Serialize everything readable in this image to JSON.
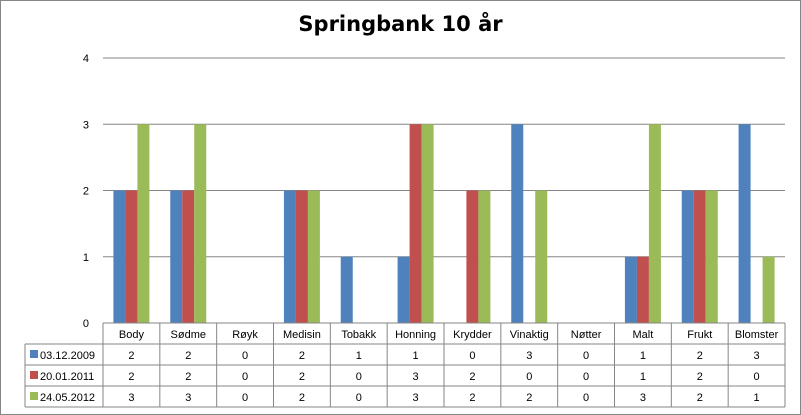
{
  "chart_data": {
    "type": "bar",
    "title": "Springbank 10 år",
    "categories": [
      "Body",
      "Sødme",
      "Røyk",
      "Medisin",
      "Tobakk",
      "Honning",
      "Krydder",
      "Vinaktig",
      "Nøtter",
      "Malt",
      "Frukt",
      "Blomster"
    ],
    "series": [
      {
        "name": "03.12.2009",
        "color": "#4F81BD",
        "values": [
          2,
          2,
          0,
          2,
          1,
          1,
          0,
          3,
          0,
          1,
          2,
          3
        ]
      },
      {
        "name": "20.01.2011",
        "color": "#C0504D",
        "values": [
          2,
          2,
          0,
          2,
          0,
          3,
          2,
          0,
          0,
          1,
          2,
          0
        ]
      },
      {
        "name": "24.05.2012",
        "color": "#9BBB59",
        "values": [
          3,
          3,
          0,
          2,
          0,
          3,
          2,
          2,
          0,
          3,
          2,
          1
        ]
      }
    ],
    "ylim": [
      0,
      4
    ],
    "yticks": [
      0,
      1,
      2,
      3,
      4
    ],
    "grid": true,
    "legend": "data-table"
  }
}
